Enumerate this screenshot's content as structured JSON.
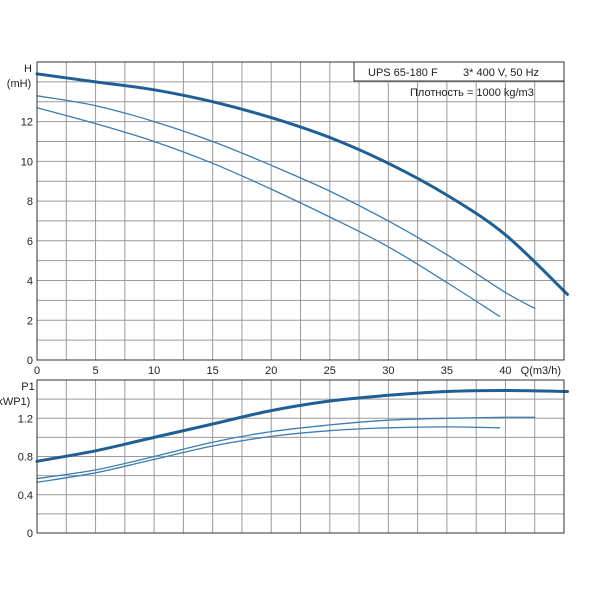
{
  "chart_data": [
    {
      "type": "line",
      "title": "UPS 65-180 F",
      "subtitle": "3* 400 V, 50 Hz",
      "note": "Плотность = 1000 kg/m3",
      "ylabel": "H",
      "ylabel_unit": "(mH)",
      "xlabel": "Q(m3/h)",
      "xlim": [
        0,
        45
      ],
      "ylim": [
        0,
        15
      ],
      "x_ticks": [
        0,
        5,
        10,
        15,
        20,
        25,
        30,
        35,
        40
      ],
      "y_ticks": [
        0,
        2,
        4,
        6,
        8,
        10,
        12
      ],
      "grid": true,
      "series": [
        {
          "color": "#1f5f95",
          "width": 3,
          "x": [
            0,
            5,
            10,
            15,
            20,
            25,
            30,
            35,
            40,
            45.3
          ],
          "y": [
            14.4,
            14.0,
            13.6,
            13.0,
            12.2,
            11.2,
            9.9,
            8.3,
            6.3,
            3.3
          ]
        },
        {
          "color": "#3a7db5",
          "width": 1.3,
          "x": [
            0,
            5,
            10,
            15,
            20,
            25,
            30,
            35,
            40,
            42.5
          ],
          "y": [
            13.3,
            12.8,
            12.0,
            11.0,
            9.8,
            8.5,
            7.0,
            5.3,
            3.4,
            2.6
          ]
        },
        {
          "color": "#3a7db5",
          "width": 1.3,
          "x": [
            0,
            5,
            10,
            15,
            20,
            25,
            30,
            35,
            39.5
          ],
          "y": [
            12.7,
            11.9,
            11.0,
            9.9,
            8.6,
            7.2,
            5.7,
            3.9,
            2.2
          ]
        }
      ]
    },
    {
      "type": "line",
      "ylabel": "P1",
      "ylabel_unit": "(kWP1)",
      "xlim": [
        0,
        45
      ],
      "ylim": [
        0,
        1.6
      ],
      "y_ticks": [
        0,
        0.4,
        0.8,
        1.2
      ],
      "grid": true,
      "series": [
        {
          "color": "#1f5f95",
          "width": 3,
          "x": [
            0,
            5,
            10,
            15,
            20,
            25,
            30,
            35,
            40,
            45.3
          ],
          "y": [
            0.75,
            0.86,
            1.0,
            1.14,
            1.28,
            1.38,
            1.44,
            1.48,
            1.49,
            1.48
          ]
        },
        {
          "color": "#3a7db5",
          "width": 1.3,
          "x": [
            0,
            5,
            10,
            15,
            20,
            25,
            30,
            35,
            40,
            42.5
          ],
          "y": [
            0.57,
            0.66,
            0.8,
            0.95,
            1.06,
            1.13,
            1.18,
            1.2,
            1.21,
            1.21
          ]
        },
        {
          "color": "#3a7db5",
          "width": 1.3,
          "x": [
            0,
            5,
            10,
            15,
            20,
            25,
            30,
            35,
            39.5
          ],
          "y": [
            0.53,
            0.63,
            0.77,
            0.91,
            1.01,
            1.07,
            1.1,
            1.11,
            1.1
          ]
        }
      ]
    }
  ]
}
